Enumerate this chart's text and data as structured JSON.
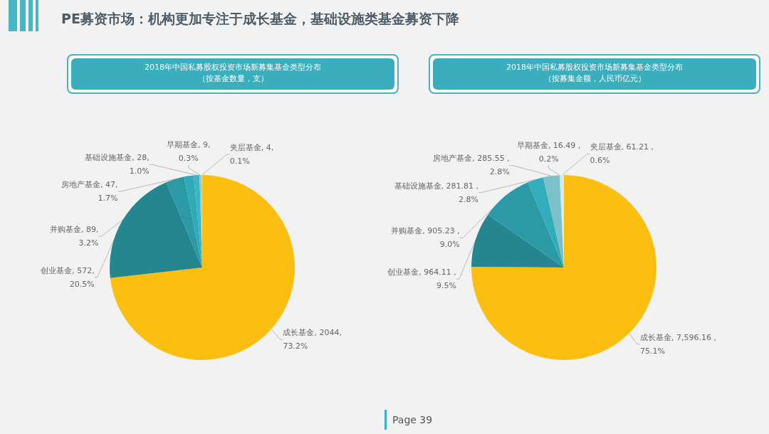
{
  "chart_data": [
    {
      "type": "pie",
      "title": "2018年中国私募股权投资市场新募集基金类型分布",
      "subtitle": "（按基金数量，支）",
      "annotations": [
        "PE募资市场：机构更加专注于成长基金，基础设施类基金募资下降"
      ],
      "categories": [
        "成长基金",
        "创业基金",
        "并购基金",
        "房地产基金",
        "基础设施基金",
        "早期基金",
        "夹层基金"
      ],
      "values": [
        2044,
        572,
        89,
        47,
        28,
        9,
        4
      ],
      "value_labels": [
        "2044, 73.2%",
        "572, 20.5%",
        "89, 3.2%",
        "47, 1.7%",
        "28, 1.0%",
        "9, 0.3%",
        "4, 0.1%"
      ],
      "colors": [
        "#fdbf0f",
        "#25868f",
        "#2b9aa6",
        "#30aab7",
        "#3bb5c3",
        "#8fc9d1",
        "#b9dee3"
      ]
    },
    {
      "type": "pie",
      "title": "2018年中国私募股权投资市场新募集基金类型分布",
      "subtitle": "（按募集金额，人民币亿元）",
      "annotations": [
        "Page 39"
      ],
      "categories": [
        "成长基金",
        "创业基金",
        "并购基金",
        "基础设施基金",
        "房地产基金",
        "早期基金",
        "夹层基金"
      ],
      "values": [
        7596.16,
        964.11,
        905.23,
        281.81,
        285.55,
        16.49,
        61.21
      ],
      "value_labels": [
        "7,596.16 , 75.1%",
        "964.11 , 9.5%",
        "905.23 , 9.0%",
        "281.81 , 2.8%",
        "285.55 , 2.8%",
        "16.49 , 0.2%",
        "61.21 , 0.6%"
      ],
      "colors": [
        "#fdbf0f",
        "#25868f",
        "#2b9aa6",
        "#32adbb",
        "#7cc1c9",
        "#b3dee3",
        "#d5ecef"
      ]
    }
  ]
}
